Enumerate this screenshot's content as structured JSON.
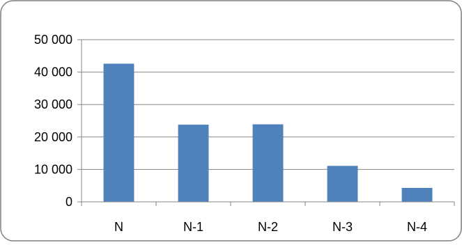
{
  "chart_data": {
    "type": "bar",
    "categories": [
      "N",
      "N-1",
      "N-2",
      "N-3",
      "N-4"
    ],
    "series": [
      {
        "values": [
          42600,
          23800,
          23900,
          11100,
          4300
        ]
      }
    ],
    "y_ticks": [
      "0",
      "10 000",
      "20 000",
      "30 000",
      "40 000",
      "50 000"
    ],
    "ylim": [
      0,
      50000
    ],
    "y_step": 10000,
    "grid": true,
    "legend": "none",
    "title": "",
    "xlabel": "",
    "ylabel": "",
    "colors": {
      "bar": "#4F81BD",
      "grid": "#868686",
      "axis": "#868686",
      "frame": "#7F7F7F"
    }
  }
}
